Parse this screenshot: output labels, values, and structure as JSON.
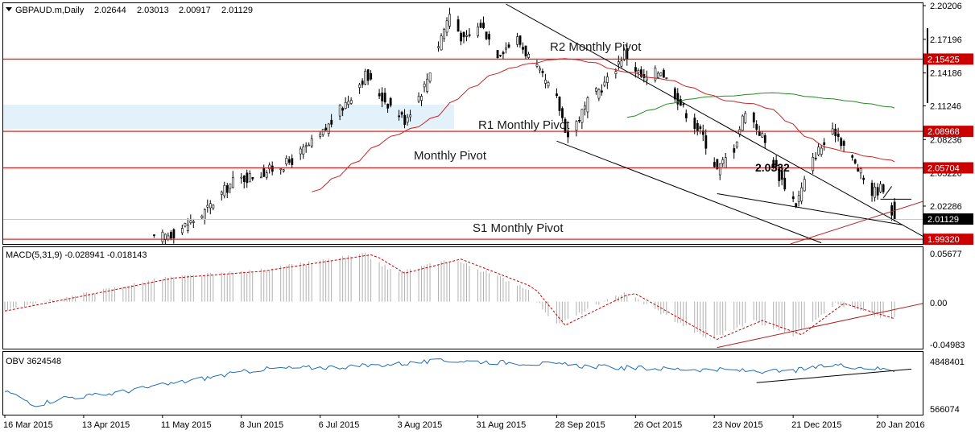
{
  "header": {
    "symbol": "GBPAUD.m,Daily",
    "open": "2.02644",
    "high": "2.03013",
    "low": "2.00917",
    "close": "2.01129"
  },
  "price_axis": {
    "ticks": [
      "2.20206",
      "2.17196",
      "2.14186",
      "2.11246",
      "2.08236",
      "2.05226",
      "2.02286"
    ],
    "tagged_levels": [
      {
        "label": "2.15425",
        "value": 2.15425,
        "color": "#cc0000"
      },
      {
        "label": "2.08968",
        "value": 2.08968,
        "color": "#cc0000"
      },
      {
        "label": "2.05704",
        "value": 2.05704,
        "color": "#cc0000"
      },
      {
        "label": "2.01129",
        "value": 2.01129,
        "color": "#000000"
      },
      {
        "label": "1.99320",
        "value": 1.9932,
        "color": "#cc0000"
      }
    ]
  },
  "pivots": {
    "r2": "R2 Monthly Pivot",
    "r1": "R1 Monthly Pivot",
    "p": "Monthly Pivot",
    "s1": "S1 Monthly Pivot",
    "target": "2.0532"
  },
  "macd": {
    "label": "MACD(5,31,9) -0.028941 -0.018143",
    "ticks": [
      "0.05677",
      "0.00",
      "-0.04983"
    ]
  },
  "obv": {
    "label": "OBV 3624548",
    "ticks": [
      "4848401",
      "566074"
    ]
  },
  "x_axis": {
    "labels": [
      "16 Mar 2015",
      "13 Apr 2015",
      "11 May 2015",
      "8 Jun 2015",
      "6 Jul 2015",
      "3 Aug 2015",
      "31 Aug 2015",
      "28 Sep 2015",
      "26 Oct 2015",
      "23 Nov 2015",
      "21 Dec 2015",
      "20 Jan 2016"
    ]
  },
  "colors": {
    "candles": "#000000",
    "pivot_line": "#b22222",
    "ma_fast": "#cc2222",
    "ma_slow": "#228b22",
    "channel": "#000000",
    "macd_signal": "#cc0000",
    "obv_line": "#1f6fb5"
  },
  "chart_data": {
    "type": "candlestick",
    "symbol": "GBPAUD.m",
    "timeframe": "Daily",
    "x_range": [
      "2015-03-16",
      "2016-01-26"
    ],
    "y_range": [
      1.989,
      2.2035
    ],
    "price_path": [
      [
        "2015-05-08",
        1.993
      ],
      [
        "2015-05-15",
        1.999
      ],
      [
        "2015-05-25",
        2.015
      ],
      [
        "2015-06-05",
        2.045
      ],
      [
        "2015-06-15",
        2.052
      ],
      [
        "2015-06-25",
        2.062
      ],
      [
        "2015-07-06",
        2.085
      ],
      [
        "2015-07-15",
        2.115
      ],
      [
        "2015-07-22",
        2.14
      ],
      [
        "2015-07-28",
        2.12
      ],
      [
        "2015-08-05",
        2.1
      ],
      [
        "2015-08-12",
        2.13
      ],
      [
        "2015-08-18",
        2.175
      ],
      [
        "2015-08-21",
        2.195
      ],
      [
        "2015-08-26",
        2.17
      ],
      [
        "2015-09-01",
        2.185
      ],
      [
        "2015-09-07",
        2.16
      ],
      [
        "2015-09-14",
        2.172
      ],
      [
        "2015-09-21",
        2.145
      ],
      [
        "2015-09-28",
        2.118
      ],
      [
        "2015-10-02",
        2.085
      ],
      [
        "2015-10-09",
        2.115
      ],
      [
        "2015-10-16",
        2.135
      ],
      [
        "2015-10-22",
        2.16
      ],
      [
        "2015-10-29",
        2.135
      ],
      [
        "2015-11-04",
        2.145
      ],
      [
        "2015-11-12",
        2.11
      ],
      [
        "2015-11-19",
        2.085
      ],
      [
        "2015-11-24",
        2.055
      ],
      [
        "2015-11-30",
        2.075
      ],
      [
        "2015-12-04",
        2.11
      ],
      [
        "2015-12-10",
        2.085
      ],
      [
        "2015-12-16",
        2.05
      ],
      [
        "2015-12-22",
        2.025
      ],
      [
        "2015-12-29",
        2.07
      ],
      [
        "2016-01-05",
        2.09
      ],
      [
        "2016-01-12",
        2.06
      ],
      [
        "2016-01-18",
        2.035
      ],
      [
        "2016-01-22",
        2.04
      ],
      [
        "2016-01-26",
        2.011
      ]
    ],
    "horizontal_levels": [
      {
        "name": "R2 Monthly Pivot",
        "value": 2.15425
      },
      {
        "name": "R1 Monthly Pivot",
        "value": 2.08968
      },
      {
        "name": "Monthly Pivot",
        "value": 2.05704
      },
      {
        "name": "S1 Monthly Pivot",
        "value": 1.9932
      }
    ],
    "target_level": 2.0532,
    "indicators": {
      "macd": {
        "params": "5,31,9",
        "main": -0.028941,
        "signal": -0.018143,
        "range": [
          -0.04983,
          0.05677
        ]
      },
      "obv": {
        "value": 3624548,
        "range": [
          566074,
          4848401
        ]
      }
    },
    "grid": false
  }
}
